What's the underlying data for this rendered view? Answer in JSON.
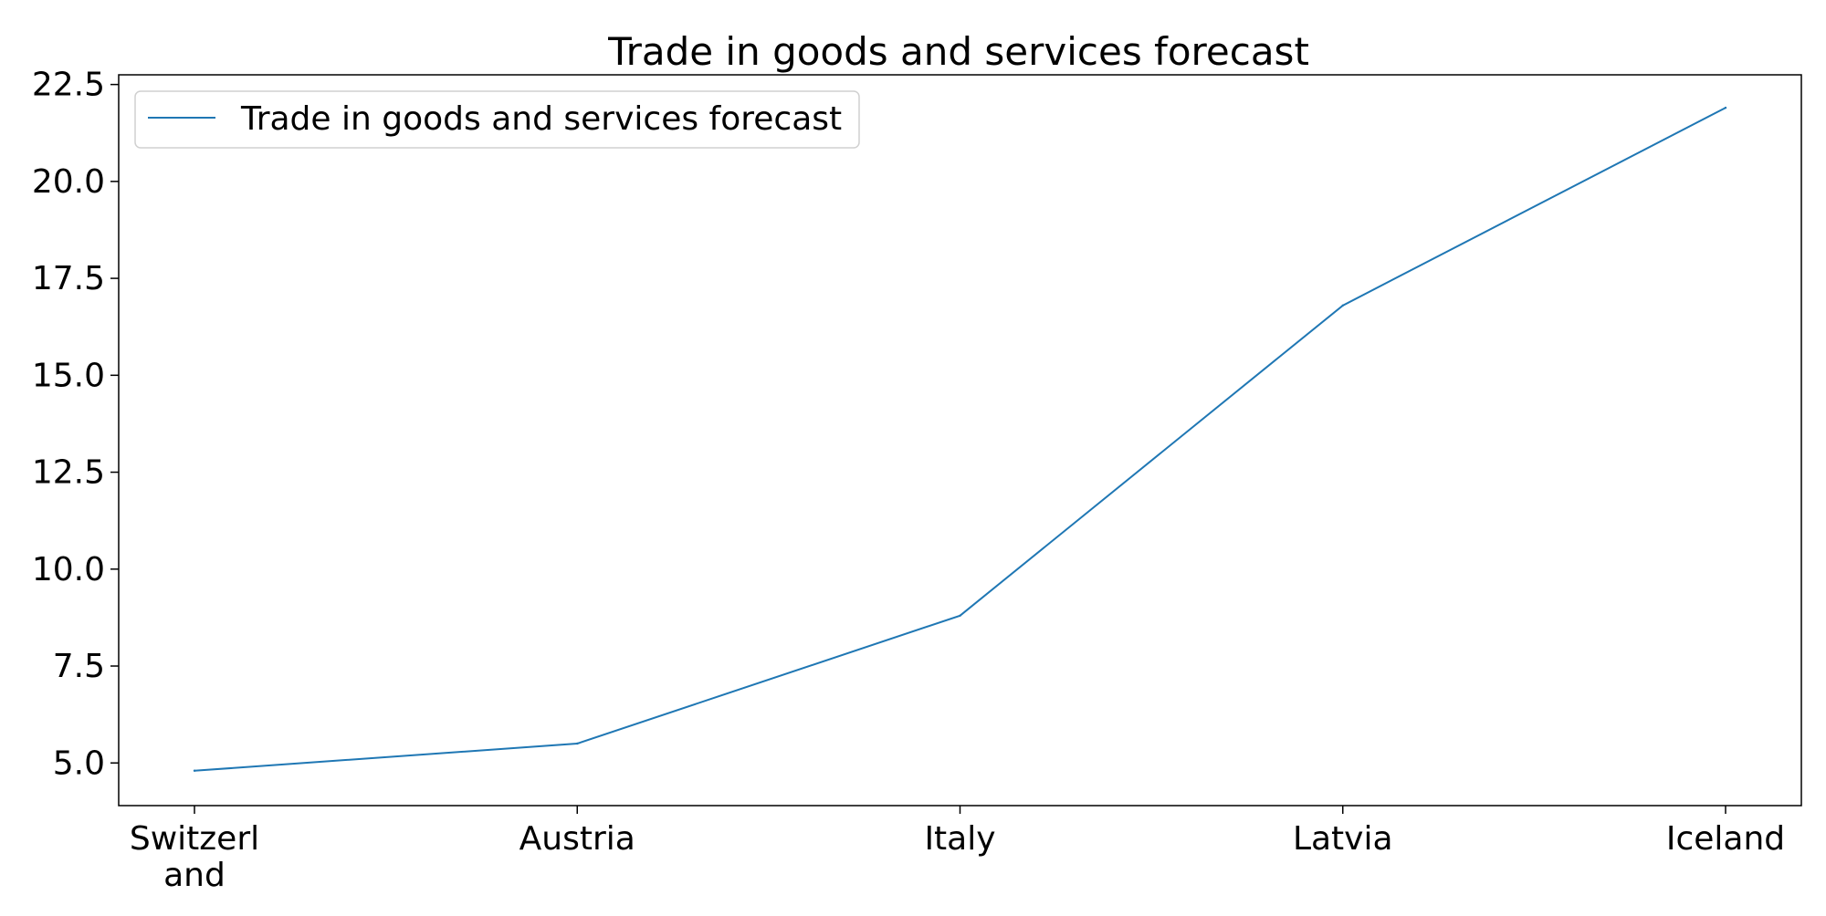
{
  "chart_data": {
    "type": "line",
    "title": "Trade in goods and services forecast",
    "xlabel": "",
    "ylabel": "",
    "categories": [
      "Switzerland",
      "Austria",
      "Italy",
      "Latvia",
      "Iceland"
    ],
    "category_label_lines": [
      [
        "Switzerl",
        "and"
      ],
      [
        "Austria"
      ],
      [
        "Italy"
      ],
      [
        "Latvia"
      ],
      [
        "Iceland"
      ]
    ],
    "series": [
      {
        "name": "Trade in goods and services forecast",
        "values": [
          4.8,
          5.5,
          8.8,
          16.8,
          21.9
        ],
        "color": "#1f77b4"
      }
    ],
    "ylim": [
      3.9,
      22.75
    ],
    "yticks": [
      5.0,
      7.5,
      10.0,
      12.5,
      15.0,
      17.5,
      20.0,
      22.5
    ],
    "ytick_labels": [
      "5.0",
      "7.5",
      "10.0",
      "12.5",
      "15.0",
      "17.5",
      "20.0",
      "22.5"
    ],
    "grid": false,
    "legend_position": "top-left"
  }
}
